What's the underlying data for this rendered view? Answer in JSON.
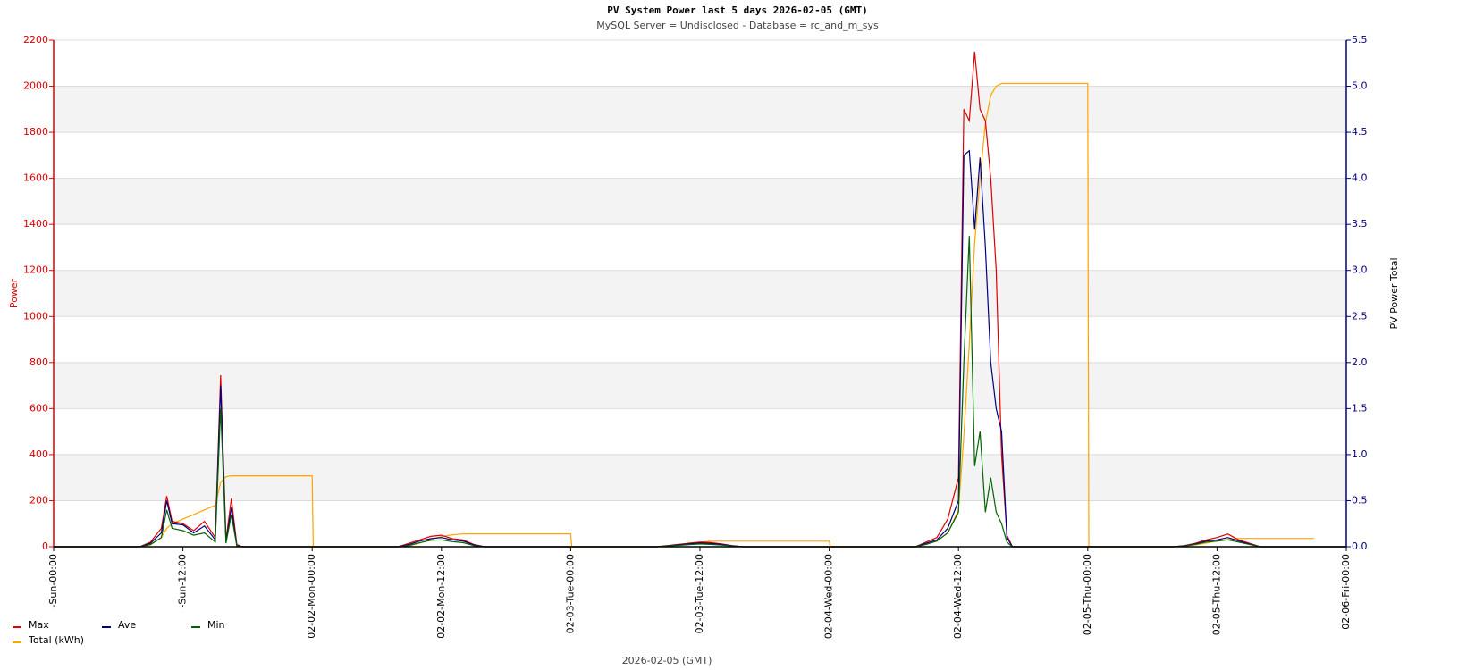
{
  "chart_data": {
    "type": "line",
    "title": "PV System Power last 5     days 2026-02-05 (GMT)",
    "subtitle": "MySQL Server = Undisclosed - Database = rc_and_m_sys",
    "y_label": "Power",
    "y2_label": "PV Power Total",
    "x_label": "2026-02-05 (GMT)",
    "x": [
      0,
      8,
      9,
      10,
      10.5,
      11,
      12,
      13,
      14,
      15,
      15.5,
      16,
      16.5,
      17,
      17.5,
      18,
      24,
      24.1,
      32,
      33,
      34,
      35,
      36,
      37,
      38,
      39,
      40,
      48,
      48.1,
      56,
      57,
      58,
      59,
      60,
      61,
      62,
      63,
      64,
      72,
      72.1,
      80,
      81,
      82,
      83,
      84,
      84.5,
      85,
      85.5,
      86,
      86.5,
      87,
      87.5,
      88,
      88.5,
      89,
      90,
      96,
      96.1,
      104,
      105,
      106,
      107,
      108,
      109,
      110,
      111,
      112,
      117,
      120
    ],
    "series": [
      {
        "name": "Max",
        "color": "#e00000",
        "values": [
          0,
          0,
          20,
          80,
          220,
          110,
          100,
          70,
          110,
          40,
          745,
          30,
          210,
          10,
          0,
          0,
          0,
          0,
          0,
          15,
          30,
          45,
          50,
          35,
          30,
          10,
          0,
          0,
          0,
          0,
          5,
          10,
          15,
          20,
          18,
          12,
          5,
          0,
          0,
          0,
          0,
          20,
          40,
          120,
          300,
          1900,
          1850,
          2150,
          1900,
          1850,
          1600,
          1200,
          400,
          50,
          0,
          0,
          0,
          0,
          0,
          5,
          15,
          30,
          40,
          55,
          30,
          15,
          0,
          0,
          0
        ]
      },
      {
        "name": "Ave",
        "color": "#000080",
        "values": [
          0,
          0,
          15,
          60,
          200,
          100,
          95,
          60,
          90,
          30,
          700,
          20,
          170,
          5,
          0,
          0,
          0,
          0,
          0,
          10,
          25,
          35,
          40,
          30,
          25,
          8,
          0,
          0,
          0,
          0,
          4,
          8,
          12,
          16,
          14,
          10,
          4,
          0,
          0,
          0,
          0,
          15,
          30,
          80,
          200,
          1700,
          1720,
          1380,
          1690,
          1300,
          800,
          600,
          500,
          40,
          0,
          0,
          0,
          0,
          0,
          4,
          12,
          25,
          30,
          40,
          25,
          12,
          0,
          0,
          0
        ]
      },
      {
        "name": "Min",
        "color": "#006400",
        "values": [
          0,
          0,
          10,
          40,
          160,
          80,
          70,
          50,
          60,
          20,
          600,
          15,
          140,
          3,
          0,
          0,
          0,
          0,
          0,
          6,
          18,
          28,
          30,
          22,
          18,
          5,
          0,
          0,
          0,
          0,
          3,
          6,
          9,
          12,
          10,
          7,
          3,
          0,
          0,
          0,
          0,
          10,
          25,
          60,
          150,
          800,
          1350,
          350,
          500,
          150,
          300,
          150,
          100,
          20,
          0,
          0,
          0,
          0,
          0,
          3,
          10,
          20,
          25,
          30,
          20,
          10,
          0,
          0,
          0
        ]
      },
      {
        "name": "Total (kWh)",
        "color": "#ffa500",
        "axis": "y2",
        "values": [
          0,
          0,
          0.02,
          0.1,
          0.2,
          0.25,
          0.3,
          0.35,
          0.4,
          0.45,
          0.7,
          0.76,
          0.77,
          0.77,
          0.77,
          0.77,
          0.77,
          0,
          0,
          0.01,
          0.04,
          0.08,
          0.11,
          0.13,
          0.14,
          0.14,
          0.14,
          0.14,
          0,
          0,
          0.01,
          0.02,
          0.04,
          0.05,
          0.06,
          0.06,
          0.06,
          0.06,
          0.06,
          0,
          0,
          0.03,
          0.06,
          0.15,
          0.4,
          1.2,
          2.2,
          3.3,
          4.0,
          4.6,
          4.9,
          5.0,
          5.03,
          5.03,
          5.03,
          5.03,
          5.03,
          0,
          0,
          0.01,
          0.02,
          0.04,
          0.06,
          0.08,
          0.09,
          0.09,
          0.09,
          0.09,
          null
        ]
      }
    ],
    "xlim": [
      0,
      120
    ],
    "xticks": [
      {
        "value": 0,
        "label": "-Sun-00:00"
      },
      {
        "value": 12,
        "label": "-Sun-12:00"
      },
      {
        "value": 24,
        "label": "02-02-Mon-00:00"
      },
      {
        "value": 36,
        "label": "02-02-Mon-12:00"
      },
      {
        "value": 48,
        "label": "02-03-Tue-00:00"
      },
      {
        "value": 60,
        "label": "02-03-Tue-12:00"
      },
      {
        "value": 72,
        "label": "02-04-Wed-00:00"
      },
      {
        "value": 84,
        "label": "02-04-Wed-12:00"
      },
      {
        "value": 96,
        "label": "02-05-Thu-00:00"
      },
      {
        "value": 108,
        "label": "02-05-Thu-12:00"
      },
      {
        "value": 120,
        "label": "02-06-Fri-00:00"
      }
    ],
    "ylim": [
      0,
      2200
    ],
    "yticks": [
      0,
      200,
      400,
      600,
      800,
      1000,
      1200,
      1400,
      1600,
      1800,
      2000,
      2200
    ],
    "y2lim": [
      0,
      5.5
    ],
    "y2ticks": [
      {
        "value": 0,
        "label": "0.0"
      },
      0.5,
      {
        "value": 1,
        "label": "1.0"
      },
      1.5,
      {
        "value": 2,
        "label": "2.0"
      },
      2.5,
      {
        "value": 3,
        "label": "3.0"
      },
      3.5,
      {
        "value": 4,
        "label": "4.0"
      },
      4.5,
      {
        "value": 5,
        "label": "5.0"
      },
      5.5
    ],
    "y_axis_color": "#e00000",
    "y2_axis_color": "#000080",
    "grid": true,
    "grid_bands": true,
    "legend": "bottom-left"
  }
}
